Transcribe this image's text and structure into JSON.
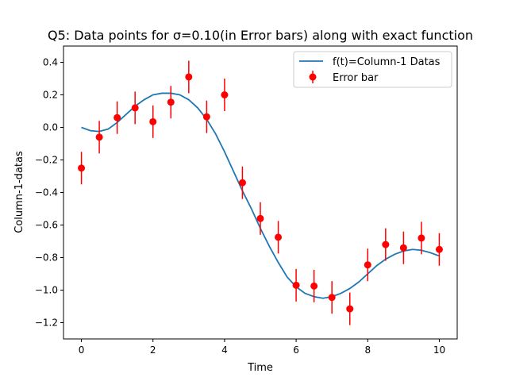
{
  "chart_data": {
    "type": "line",
    "title": "Q5: Data points for σ=0.10(in Error bars) along with exact function",
    "xlabel": "Time",
    "ylabel": "Column-1-datas",
    "xlim": [
      -0.5,
      10.5
    ],
    "ylim": [
      -1.3,
      0.5
    ],
    "xticks": [
      0,
      2,
      4,
      6,
      8,
      10
    ],
    "xtick_labels": [
      "0",
      "2",
      "4",
      "6",
      "8",
      "10"
    ],
    "yticks": [
      -1.2,
      -1.0,
      -0.8,
      -0.6,
      -0.4,
      -0.2,
      0.0,
      0.2,
      0.4
    ],
    "ytick_labels": [
      "−1.2",
      "−1.0",
      "−0.8",
      "−0.6",
      "−0.4",
      "−0.2",
      "0.0",
      "0.2",
      "0.4"
    ],
    "grid": false,
    "legend_position": "top-right",
    "series": [
      {
        "name": "f(t)=Column-1 Datas",
        "kind": "line",
        "color": "#1f77b4",
        "x": [
          0.0,
          0.25,
          0.5,
          0.75,
          1.0,
          1.25,
          1.5,
          1.75,
          2.0,
          2.25,
          2.5,
          2.75,
          3.0,
          3.25,
          3.5,
          3.75,
          4.0,
          4.25,
          4.5,
          4.75,
          5.0,
          5.25,
          5.5,
          5.75,
          6.0,
          6.25,
          6.5,
          6.75,
          7.0,
          7.25,
          7.5,
          7.75,
          8.0,
          8.25,
          8.5,
          8.75,
          9.0,
          9.25,
          9.5,
          9.75,
          10.0
        ],
        "y": [
          0.0,
          -0.02,
          -0.025,
          -0.01,
          0.03,
          0.08,
          0.13,
          0.17,
          0.2,
          0.21,
          0.21,
          0.2,
          0.17,
          0.12,
          0.05,
          -0.04,
          -0.15,
          -0.27,
          -0.39,
          -0.5,
          -0.62,
          -0.73,
          -0.83,
          -0.92,
          -0.98,
          -1.02,
          -1.04,
          -1.05,
          -1.04,
          -1.02,
          -0.99,
          -0.95,
          -0.9,
          -0.85,
          -0.81,
          -0.78,
          -0.76,
          -0.75,
          -0.755,
          -0.77,
          -0.79
        ]
      },
      {
        "name": "Error bar",
        "kind": "errorbar",
        "color": "#ff0000",
        "x": [
          0.0,
          0.5,
          1.0,
          1.5,
          2.0,
          2.5,
          3.0,
          3.5,
          4.0,
          4.5,
          5.0,
          5.5,
          6.0,
          6.5,
          7.0,
          7.5,
          8.0,
          8.5,
          9.0,
          9.5,
          10.0
        ],
        "y": [
          -0.25,
          -0.06,
          0.06,
          0.12,
          0.035,
          0.155,
          0.31,
          0.065,
          0.2,
          -0.34,
          -0.56,
          -0.675,
          -0.97,
          -0.975,
          -1.045,
          -1.115,
          -0.845,
          -0.72,
          -0.74,
          -0.68,
          -0.75
        ],
        "yerr": 0.1
      }
    ]
  }
}
